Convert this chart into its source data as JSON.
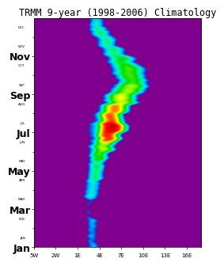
{
  "title": "TRMM 9-year (1998-2006) Climatology",
  "title_fontsize": 8.5,
  "lon_min": -5,
  "lon_max": 18,
  "lon_ticks": [
    -5,
    -2,
    1,
    4,
    7,
    10,
    13,
    16
  ],
  "lon_labels": [
    "5W",
    "2W",
    "1E",
    "4E",
    "7E",
    "10E",
    "13E",
    "16E"
  ],
  "major_month_positions": [
    0,
    2,
    4,
    6,
    8,
    10
  ],
  "major_month_labels": [
    "Jan",
    "Mar",
    "May",
    "Jul",
    "Sep",
    "Nov"
  ],
  "minor_month_labels": [
    "JAN",
    "FEB",
    "MAR",
    "APR",
    "MAY",
    "JUN",
    "JUL",
    "AUG",
    "SEP",
    "OCT",
    "NOV",
    "DEC"
  ],
  "bg_color": "#aa00aa",
  "vmin": 0,
  "vmax": 10,
  "n_months": 300,
  "n_lons": 200
}
